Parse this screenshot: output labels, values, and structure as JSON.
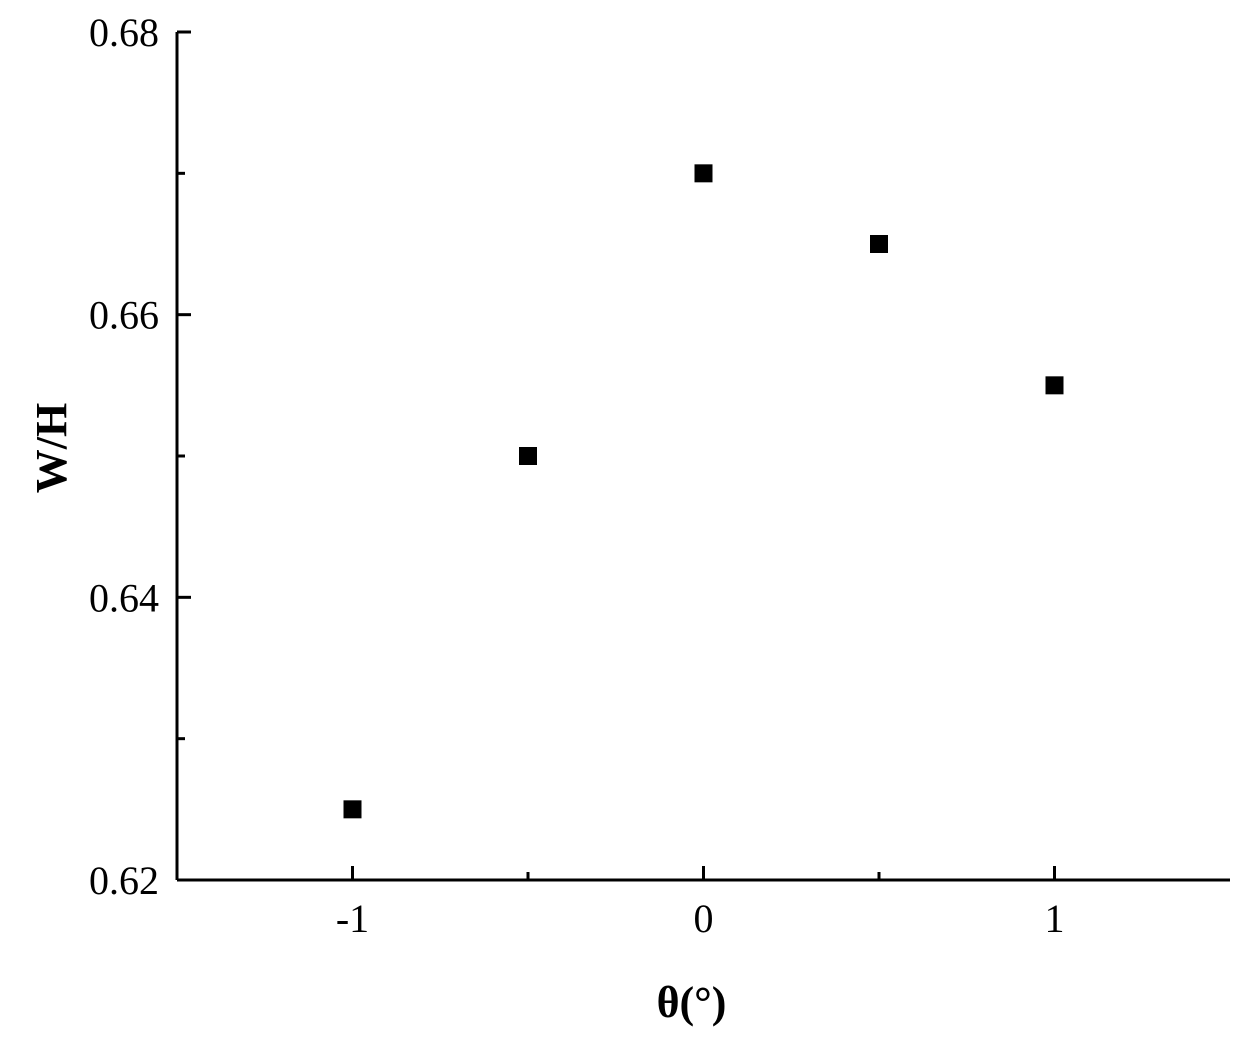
{
  "chart_data": {
    "type": "scatter",
    "xlabel": "θ(°)",
    "ylabel": "W/H",
    "xlim": [
      -1.5,
      1.5
    ],
    "ylim": [
      0.62,
      0.68
    ],
    "x_ticks": [
      -1,
      0,
      1
    ],
    "x_tick_labels": [
      "-1",
      "0",
      "1"
    ],
    "x_minor_ticks": [
      -0.5,
      0.5
    ],
    "y_ticks": [
      0.62,
      0.64,
      0.66,
      0.68
    ],
    "y_tick_labels": [
      "0.62",
      "0.64",
      "0.66",
      "0.68"
    ],
    "y_minor_ticks": [
      0.63,
      0.65,
      0.67
    ],
    "grid": false,
    "marker": "square",
    "marker_color": "#000000",
    "x": [
      -1,
      -0.5,
      0,
      0.5,
      1
    ],
    "y": [
      0.625,
      0.65,
      0.67,
      0.665,
      0.655
    ]
  }
}
